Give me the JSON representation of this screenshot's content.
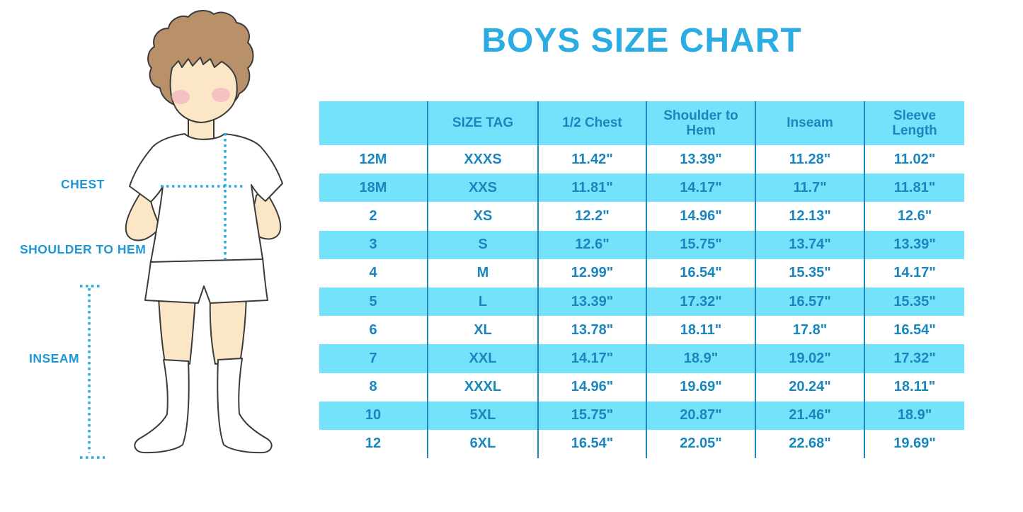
{
  "title": "BOYS SIZE CHART",
  "figure": {
    "chest_label": "CHEST",
    "shoulder_label": "SHOULDER TO HEM",
    "inseam_label": "INSEAM"
  },
  "chart_data": {
    "type": "table",
    "title": "BOYS SIZE CHART",
    "columns": [
      "",
      "SIZE TAG",
      "1/2 Chest",
      "Shoulder to Hem",
      "Inseam",
      "Sleeve Length"
    ],
    "rows": [
      [
        "12M",
        "XXXS",
        "11.42\"",
        "13.39\"",
        "11.28\"",
        "11.02\""
      ],
      [
        "18M",
        "XXS",
        "11.81\"",
        "14.17\"",
        "11.7\"",
        "11.81\""
      ],
      [
        "2",
        "XS",
        "12.2\"",
        "14.96\"",
        "12.13\"",
        "12.6\""
      ],
      [
        "3",
        "S",
        "12.6\"",
        "15.75\"",
        "13.74\"",
        "13.39\""
      ],
      [
        "4",
        "M",
        "12.99\"",
        "16.54\"",
        "15.35\"",
        "14.17\""
      ],
      [
        "5",
        "L",
        "13.39\"",
        "17.32\"",
        "16.57\"",
        "15.35\""
      ],
      [
        "6",
        "XL",
        "13.78\"",
        "18.11\"",
        "17.8\"",
        "16.54\""
      ],
      [
        "7",
        "XXL",
        "14.17\"",
        "18.9\"",
        "19.02\"",
        "17.32\""
      ],
      [
        "8",
        "XXXL",
        "14.96\"",
        "19.69\"",
        "20.24\"",
        "18.11\""
      ],
      [
        "10",
        "5XL",
        "15.75\"",
        "20.87\"",
        "21.46\"",
        "18.9\""
      ],
      [
        "12",
        "6XL",
        "16.54\"",
        "22.05\"",
        "22.68\"",
        "19.69\""
      ]
    ],
    "stripe_pattern": "header cyan, then rows alternate white/cyan starting white",
    "units": "inches"
  },
  "colors": {
    "title": "#2BACE2",
    "cyan": "#75E2FB",
    "table_text": "#1987BD",
    "divider": "#1C88BB",
    "label": "#1E97D4",
    "dotted": "#29ABE2",
    "skin": "#FBE7C6",
    "hair": "#B8916A",
    "cheek": "#F2A9BF",
    "outline": "#3B3B3B"
  }
}
